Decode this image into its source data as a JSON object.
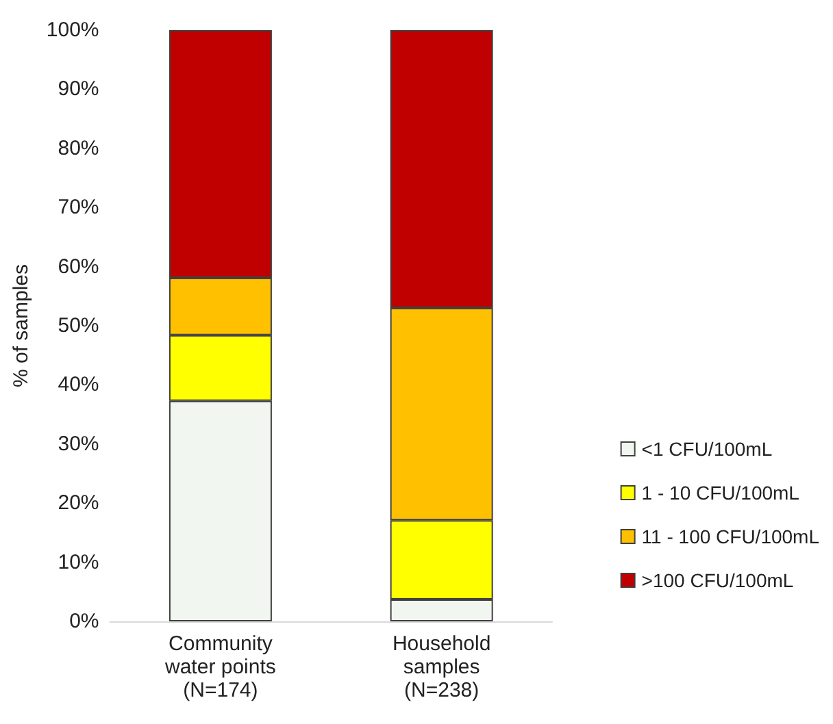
{
  "chart_data": {
    "type": "bar",
    "stacked": true,
    "ylabel": "% of samples",
    "categories": [
      "Community\nwater points\n(N=174)",
      "Household\nsamples\n(N=238)"
    ],
    "series": [
      {
        "name": "<1 CFU/100mL",
        "color": "#f2f6f0",
        "values": [
          37.3,
          3.7
        ]
      },
      {
        "name": "1 - 10 CFU/100mL",
        "color": "#ffff00",
        "values": [
          11.1,
          13.4
        ]
      },
      {
        "name": "11 - 100 CFU/100mL",
        "color": "#ffc000",
        "values": [
          9.7,
          35.9
        ]
      },
      {
        "name": ">100 CFU/100mL",
        "color": "#c00000",
        "values": [
          41.9,
          47.0
        ]
      }
    ],
    "ylim": [
      0,
      100
    ],
    "yticks": [
      {
        "value": 0,
        "label": "0%"
      },
      {
        "value": 10,
        "label": "10%"
      },
      {
        "value": 20,
        "label": "20%"
      },
      {
        "value": 30,
        "label": "30%"
      },
      {
        "value": 40,
        "label": "40%"
      },
      {
        "value": 50,
        "label": "50%"
      },
      {
        "value": 60,
        "label": "60%"
      },
      {
        "value": 70,
        "label": "70%"
      },
      {
        "value": 80,
        "label": "80%"
      },
      {
        "value": 90,
        "label": "90%"
      },
      {
        "value": 100,
        "label": "100%"
      }
    ],
    "grid": false,
    "legend": "right"
  }
}
